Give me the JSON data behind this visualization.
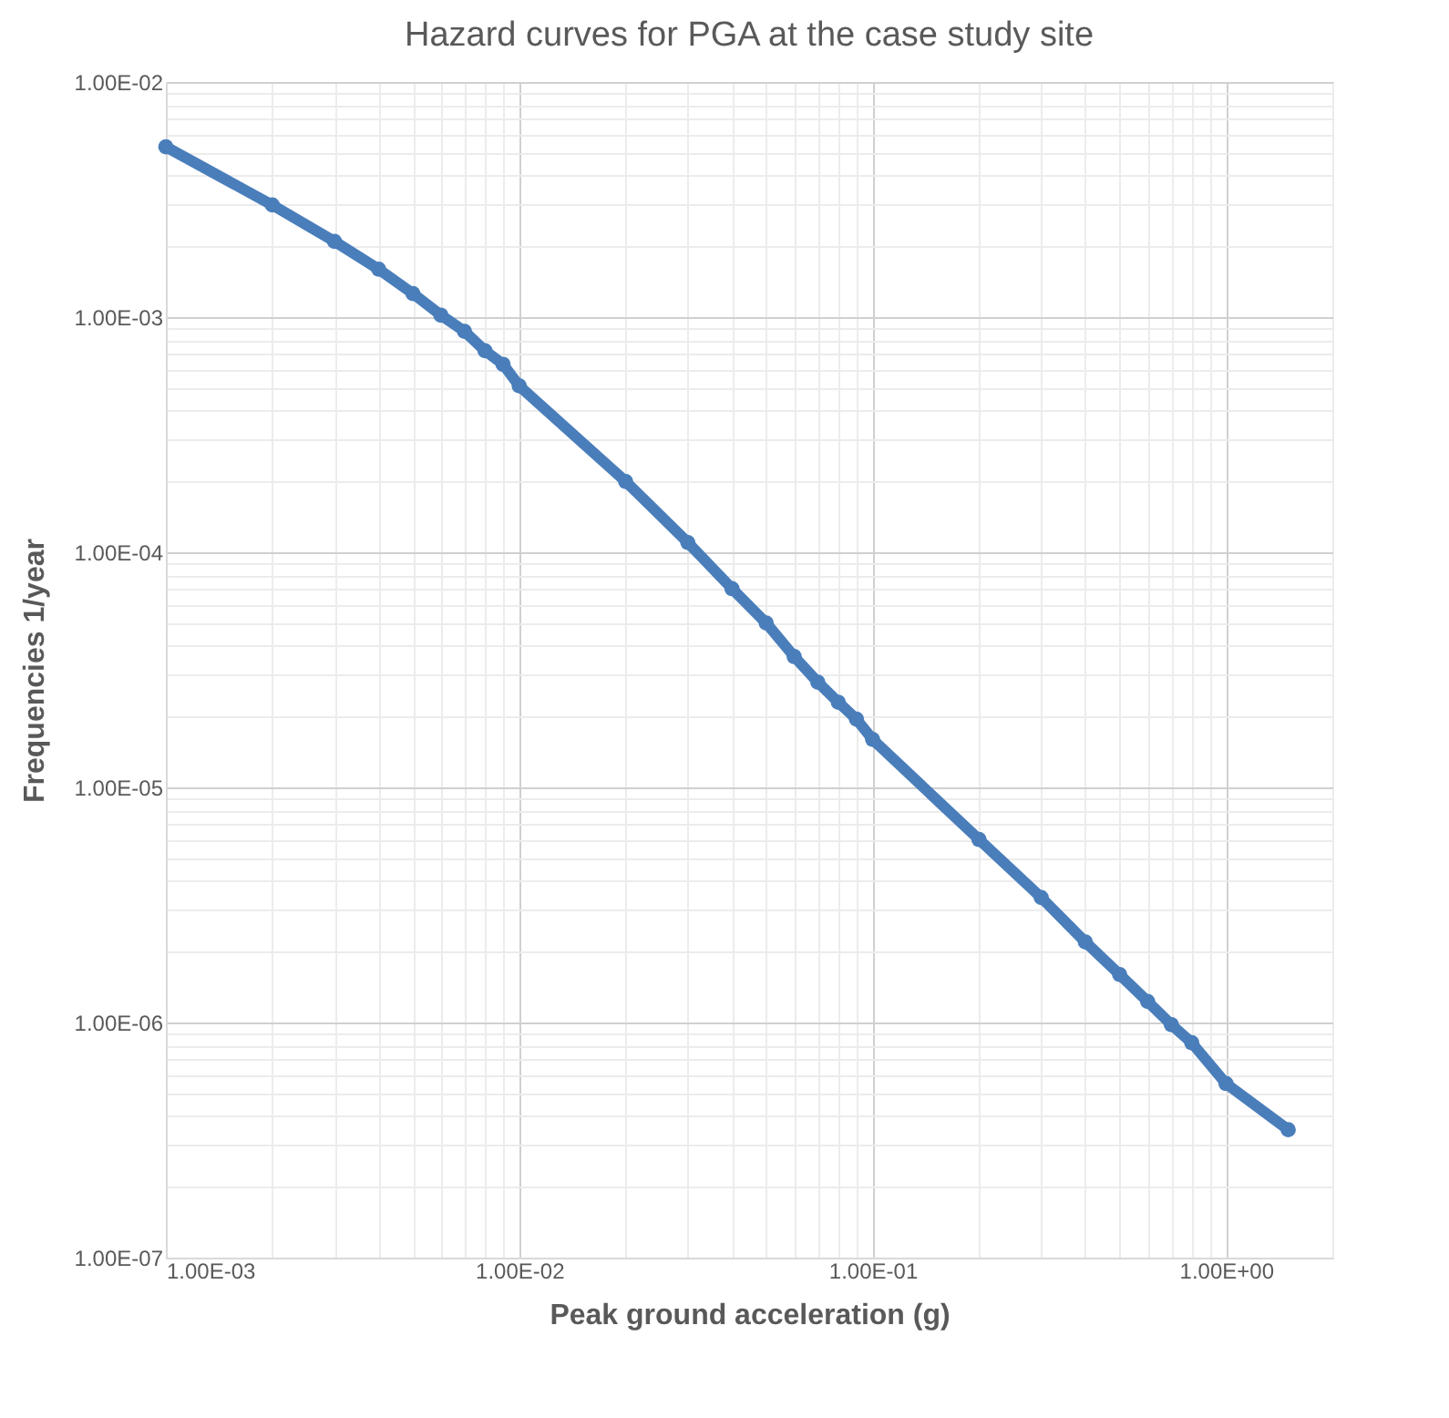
{
  "chart_data": {
    "type": "line",
    "title": "Hazard curves for PGA at the case study site",
    "xlabel": "Peak ground acceleration (g)",
    "ylabel": "Frequencies 1/year",
    "x": [
      0.001,
      0.002,
      0.003,
      0.004,
      0.005,
      0.006,
      0.007,
      0.008,
      0.009,
      0.01,
      0.02,
      0.03,
      0.04,
      0.05,
      0.06,
      0.07,
      0.08,
      0.09,
      0.1,
      0.2,
      0.3,
      0.4,
      0.5,
      0.6,
      0.7,
      0.8,
      1.0,
      1.5
    ],
    "series": [
      {
        "color": "#4a7ebb",
        "values": [
          0.0053,
          0.003,
          0.0021,
          0.0016,
          0.00126,
          0.00102,
          0.00087,
          0.00072,
          0.00063,
          0.00051,
          0.0002,
          0.00011,
          7e-05,
          5e-05,
          3.6e-05,
          2.8e-05,
          2.3e-05,
          1.95e-05,
          1.6e-05,
          6e-06,
          3.4e-06,
          2.2e-06,
          1.6e-06,
          1.23e-06,
          9.8e-07,
          8.2e-07,
          5.5e-07,
          3.5e-07
        ]
      }
    ],
    "log": "xy",
    "grid": true,
    "marker": "circle",
    "line_style": "solid",
    "xlim": [
      0.001,
      2
    ],
    "ylim": [
      1e-07,
      0.01
    ],
    "xticks": [
      {
        "value": 0.001,
        "label": "1.00E-03"
      },
      {
        "value": 0.01,
        "label": "1.00E-02"
      },
      {
        "value": 0.1,
        "label": "1.00E-01"
      },
      {
        "value": 1,
        "label": "1.00E+00"
      }
    ],
    "yticks": [
      {
        "value": 1e-07,
        "label": "1.00E-07"
      },
      {
        "value": 1e-06,
        "label": "1.00E-06"
      },
      {
        "value": 1e-05,
        "label": "1.00E-05"
      },
      {
        "value": 0.0001,
        "label": "1.00E-04"
      },
      {
        "value": 0.001,
        "label": "1.00E-03"
      },
      {
        "value": 0.01,
        "label": "1.00E-02"
      }
    ]
  }
}
